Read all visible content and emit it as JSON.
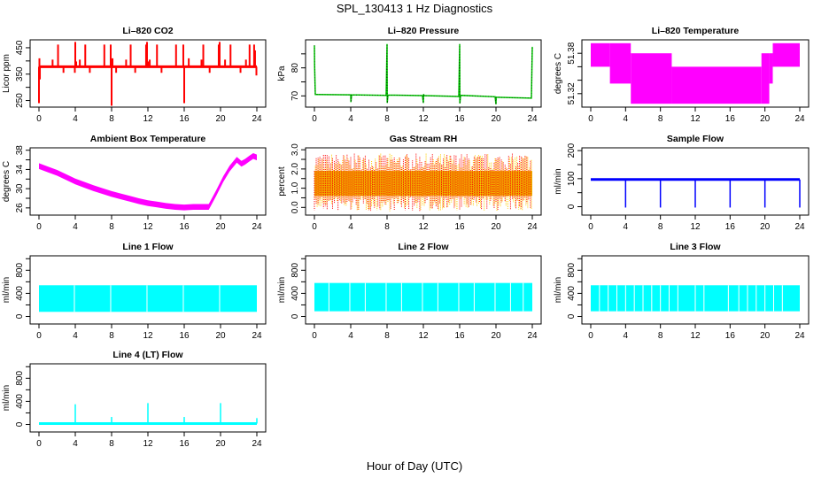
{
  "figure": {
    "title": "SPL_130413  1 Hz Diagnostics",
    "xlabel": "Hour of Day (UTC)"
  },
  "chart_data": [
    {
      "id": "li820-co2",
      "type": "line",
      "title": "Li–820 CO2",
      "ylabel": "Licor ppm",
      "color": "#ff0000",
      "xlim": [
        0,
        24
      ],
      "ylim": [
        225,
        480
      ],
      "xticks": [
        0,
        4,
        8,
        12,
        16,
        20,
        24
      ],
      "yticks": [
        250,
        300,
        350,
        400,
        450
      ],
      "ytick_labels": [
        "250",
        "",
        "350",
        "",
        "450"
      ],
      "baseline": 378,
      "x": [
        0.0,
        0.05,
        0.1,
        0.15,
        1.5,
        2.1,
        2.2,
        2.7,
        3.5,
        3.95,
        4.0,
        4.1,
        4.5,
        5.1,
        5.6,
        6.5,
        7.2,
        7.9,
        7.95,
        8.0,
        8.1,
        8.5,
        9.6,
        10.1,
        10.6,
        11.8,
        11.9,
        12.0,
        12.2,
        13.0,
        13.5,
        14.5,
        15.1,
        15.9,
        16.0,
        16.5,
        17.9,
        18.1,
        18.8,
        19.8,
        19.9,
        20.5,
        21.1,
        22.2,
        22.8,
        23.2,
        23.7,
        23.8,
        23.95
      ],
      "y": [
        240,
        410,
        330,
        378,
        405,
        462,
        378,
        355,
        378,
        355,
        472,
        398,
        405,
        462,
        355,
        378,
        462,
        462,
        405,
        230,
        410,
        355,
        405,
        462,
        355,
        462,
        472,
        398,
        405,
        462,
        355,
        378,
        462,
        462,
        240,
        410,
        405,
        462,
        355,
        462,
        472,
        405,
        462,
        355,
        405,
        462,
        462,
        440,
        345
      ]
    },
    {
      "id": "li820-pressure",
      "type": "line",
      "title": "Li–820 Pressure",
      "ylabel": "kPa",
      "color": "#00cc00",
      "xlim": [
        0,
        24
      ],
      "ylim": [
        66,
        90
      ],
      "xticks": [
        0,
        4,
        8,
        12,
        16,
        20,
        24
      ],
      "yticks": [
        70,
        75,
        80,
        85
      ],
      "ytick_labels": [
        "70",
        "",
        "80",
        ""
      ],
      "x": [
        0.0,
        0.02,
        0.1,
        0.2,
        4.0,
        4.02,
        4.1,
        7.9,
        8.0,
        8.02,
        8.1,
        11.9,
        12.0,
        12.02,
        12.1,
        15.9,
        16.0,
        16.02,
        16.1,
        19.9,
        20.0,
        20.02,
        20.1,
        23.9,
        24.0
      ],
      "y": [
        88,
        81,
        70.5,
        70.5,
        70.4,
        67.8,
        70.4,
        70.2,
        88.5,
        67.5,
        70.3,
        70.1,
        67.5,
        70.6,
        70.1,
        69.8,
        88.5,
        67.3,
        70.2,
        69.7,
        67.0,
        69.5,
        69.5,
        69.2,
        87.5
      ]
    },
    {
      "id": "li820-temperature",
      "type": "area",
      "title": "Li–820 Temperature",
      "ylabel": "degrees C",
      "color": "#ff00ff",
      "xlim": [
        0,
        24
      ],
      "ylim": [
        51.3,
        51.4
      ],
      "xticks": [
        0,
        4,
        8,
        12,
        16,
        20,
        24
      ],
      "yticks": [
        51.32,
        51.34,
        51.36,
        51.38
      ],
      "ytick_labels": [
        "51.32",
        "",
        "",
        "51.38"
      ],
      "segments": [
        {
          "x0": 0.0,
          "x1": 2.2,
          "low": 51.36,
          "high": 51.395
        },
        {
          "x0": 2.2,
          "x1": 4.6,
          "low": 51.335,
          "high": 51.395
        },
        {
          "x0": 4.6,
          "x1": 9.3,
          "low": 51.305,
          "high": 51.38
        },
        {
          "x0": 9.3,
          "x1": 19.6,
          "low": 51.305,
          "high": 51.36
        },
        {
          "x0": 19.6,
          "x1": 20.5,
          "low": 51.305,
          "high": 51.38
        },
        {
          "x0": 20.5,
          "x1": 20.9,
          "low": 51.335,
          "high": 51.38
        },
        {
          "x0": 20.9,
          "x1": 24.0,
          "low": 51.36,
          "high": 51.395
        }
      ]
    },
    {
      "id": "ambient-box-temperature",
      "type": "line",
      "title": "Ambient Box Temperature",
      "ylabel": "degrees C",
      "color": "#ff00ff",
      "xlim": [
        0,
        24
      ],
      "ylim": [
        24.5,
        38.5
      ],
      "xticks": [
        0,
        4,
        8,
        12,
        16,
        20,
        24
      ],
      "yticks": [
        26,
        28,
        30,
        32,
        34,
        36,
        38
      ],
      "ytick_labels": [
        "26",
        "",
        "30",
        "",
        "34",
        "",
        "38"
      ],
      "x": [
        0,
        1,
        2,
        3,
        4,
        5,
        6,
        7,
        8,
        9,
        10,
        11,
        12,
        13,
        14,
        15,
        16,
        17,
        18,
        18.7,
        19.5,
        20.3,
        21,
        21.8,
        22.3,
        22.7,
        23.2,
        23.6,
        24
      ],
      "y": [
        34.7,
        34.0,
        33.3,
        32.4,
        31.5,
        30.8,
        30.1,
        29.5,
        28.9,
        28.4,
        27.9,
        27.4,
        27.0,
        26.7,
        26.4,
        26.2,
        26.1,
        26.2,
        26.2,
        26.2,
        29.0,
        32.0,
        34.2,
        36.0,
        35.2,
        35.6,
        36.3,
        36.8,
        36.5
      ],
      "band": 0.6
    },
    {
      "id": "gas-stream-rh",
      "type": "area",
      "title": "Gas Stream RH",
      "ylabel": "percent",
      "color": "#ffcc00",
      "secondary_color": "#ff0000",
      "xlim": [
        0,
        24
      ],
      "ylim": [
        -0.4,
        3.1
      ],
      "xticks": [
        0,
        4,
        8,
        12,
        16,
        20,
        24
      ],
      "yticks": [
        0.0,
        0.5,
        1.0,
        1.5,
        2.0,
        2.5,
        3.0
      ],
      "ytick_labels": [
        "0.0",
        "",
        "1.0",
        "",
        "2.0",
        "",
        "3.0"
      ],
      "core_low": 0.6,
      "core_high": 1.9,
      "spike_max": 2.8,
      "spike_min": -0.2
    },
    {
      "id": "sample-flow",
      "type": "line",
      "title": "Sample Flow",
      "ylabel": "ml/min",
      "color": "#0000ff",
      "xlim": [
        0,
        24
      ],
      "ylim": [
        -30,
        210
      ],
      "xticks": [
        0,
        4,
        8,
        12,
        16,
        20,
        24
      ],
      "yticks": [
        0,
        50,
        100,
        150,
        200
      ],
      "ytick_labels": [
        "0",
        "",
        "100",
        "",
        "200"
      ],
      "baseline": 97,
      "dips_x": [
        4,
        8,
        12,
        16,
        20,
        24
      ],
      "dip_value": -3
    },
    {
      "id": "line-1-flow",
      "type": "area",
      "title": "Line 1 Flow",
      "ylabel": "ml/min",
      "color": "#00ffff",
      "xlim": [
        0,
        24
      ],
      "ylim": [
        -130,
        1050
      ],
      "xticks": [
        0,
        4,
        8,
        12,
        16,
        20,
        24
      ],
      "yticks": [
        0,
        200,
        400,
        600,
        800,
        1000
      ],
      "ytick_labels": [
        "0",
        "",
        "400",
        "",
        "800",
        ""
      ],
      "low": 80,
      "high": 540,
      "gaps_x": [
        3.9,
        7.9,
        11.9,
        15.9,
        19.9
      ]
    },
    {
      "id": "line-2-flow",
      "type": "area",
      "title": "Line 2 Flow",
      "ylabel": "ml/min",
      "color": "#00ffff",
      "xlim": [
        0,
        24
      ],
      "ylim": [
        -130,
        1050
      ],
      "xticks": [
        0,
        4,
        8,
        12,
        16,
        20,
        24
      ],
      "yticks": [
        0,
        200,
        400,
        600,
        800,
        1000
      ],
      "ytick_labels": [
        "0",
        "",
        "400",
        "",
        "800",
        ""
      ],
      "low": 90,
      "high": 580,
      "gaps_x": [
        1.6,
        3.9,
        5.6,
        7.9,
        9.6,
        11.9,
        13.6,
        15.9,
        17.6,
        19.9,
        21.6,
        23.0
      ]
    },
    {
      "id": "line-3-flow",
      "type": "area",
      "title": "Line 3 Flow",
      "ylabel": "ml/min",
      "color": "#00ffff",
      "xlim": [
        0,
        24
      ],
      "ylim": [
        -130,
        1050
      ],
      "xticks": [
        0,
        4,
        8,
        12,
        16,
        20,
        24
      ],
      "yticks": [
        0,
        200,
        400,
        600,
        800,
        1000
      ],
      "ytick_labels": [
        "0",
        "",
        "400",
        "",
        "800",
        ""
      ],
      "low": 90,
      "high": 540,
      "gaps_x": [
        1.0,
        2.0,
        3.0,
        4.0,
        5.0,
        6.0,
        7.0,
        8.0,
        9.0,
        10.0,
        12.0,
        13.0,
        15.8,
        17.0,
        18.0,
        19.0,
        20.0,
        21.0,
        22.0
      ]
    },
    {
      "id": "line-4-lt-flow",
      "type": "line",
      "title": "Line 4 (LT) Flow",
      "ylabel": "ml/min",
      "color": "#00ffff",
      "xlim": [
        0,
        24
      ],
      "ylim": [
        -130,
        1050
      ],
      "xticks": [
        0,
        4,
        8,
        12,
        16,
        20,
        24
      ],
      "yticks": [
        0,
        200,
        400,
        600,
        800,
        1000
      ],
      "ytick_labels": [
        "0",
        "",
        "400",
        "",
        "800",
        ""
      ],
      "baseline": 15,
      "spikes_x": [
        4,
        8,
        12,
        16,
        20,
        24
      ],
      "spikes_y": [
        350,
        130,
        370,
        130,
        370,
        110
      ]
    }
  ]
}
